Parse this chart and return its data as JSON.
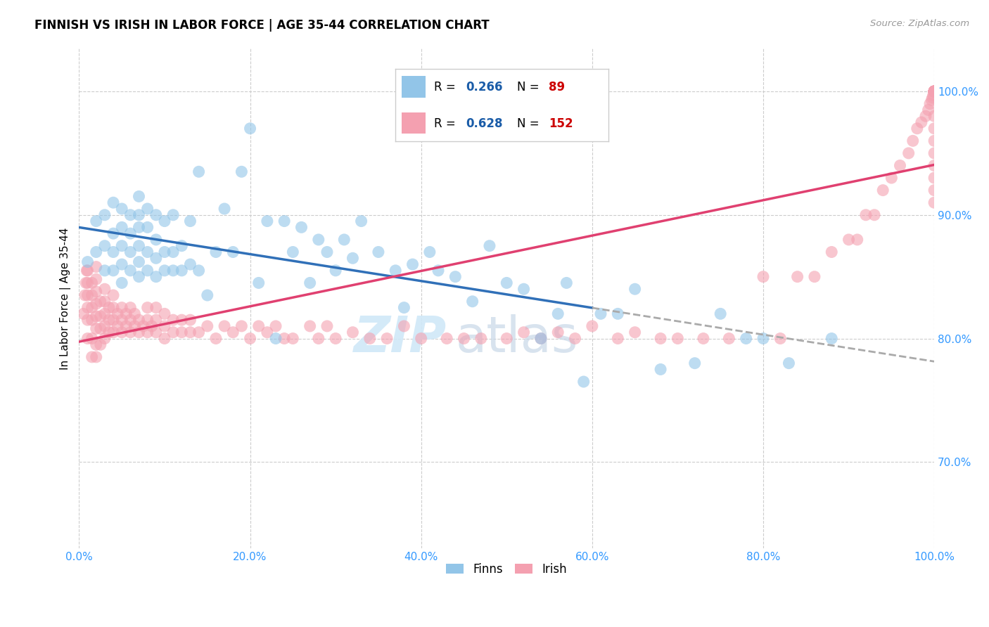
{
  "title": "FINNISH VS IRISH IN LABOR FORCE | AGE 35-44 CORRELATION CHART",
  "source": "Source: ZipAtlas.com",
  "ylabel": "In Labor Force | Age 35-44",
  "xlabel_ticks": [
    "0.0%",
    "20.0%",
    "40.0%",
    "60.0%",
    "80.0%",
    "100.0%"
  ],
  "ylabel_ticks": [
    "70.0%",
    "80.0%",
    "90.0%",
    "100.0%"
  ],
  "xlim": [
    0.0,
    1.0
  ],
  "ylim": [
    0.63,
    1.035
  ],
  "finn_color": "#92c5e8",
  "irish_color": "#f4a0b0",
  "finn_line_color": "#3070b8",
  "irish_line_color": "#e04070",
  "dashed_color": "#aaaaaa",
  "finn_R": 0.266,
  "finn_N": 89,
  "irish_R": 0.628,
  "irish_N": 152,
  "legend_R_color": "#1a5ca8",
  "legend_N_color": "#cc0000",
  "watermark_zip": "ZIP",
  "watermark_atlas": "atlas",
  "finn_x": [
    0.01,
    0.02,
    0.02,
    0.03,
    0.03,
    0.03,
    0.04,
    0.04,
    0.04,
    0.04,
    0.05,
    0.05,
    0.05,
    0.05,
    0.05,
    0.06,
    0.06,
    0.06,
    0.06,
    0.07,
    0.07,
    0.07,
    0.07,
    0.07,
    0.07,
    0.08,
    0.08,
    0.08,
    0.08,
    0.09,
    0.09,
    0.09,
    0.09,
    0.1,
    0.1,
    0.1,
    0.11,
    0.11,
    0.11,
    0.12,
    0.12,
    0.13,
    0.13,
    0.14,
    0.14,
    0.15,
    0.16,
    0.17,
    0.18,
    0.19,
    0.2,
    0.21,
    0.22,
    0.23,
    0.24,
    0.25,
    0.26,
    0.27,
    0.28,
    0.29,
    0.3,
    0.31,
    0.32,
    0.33,
    0.35,
    0.37,
    0.38,
    0.39,
    0.41,
    0.42,
    0.44,
    0.46,
    0.48,
    0.5,
    0.52,
    0.54,
    0.56,
    0.57,
    0.59,
    0.61,
    0.63,
    0.65,
    0.68,
    0.72,
    0.75,
    0.78,
    0.8,
    0.83,
    0.88
  ],
  "finn_y": [
    0.862,
    0.87,
    0.895,
    0.855,
    0.875,
    0.9,
    0.855,
    0.87,
    0.885,
    0.91,
    0.845,
    0.86,
    0.875,
    0.89,
    0.905,
    0.855,
    0.87,
    0.885,
    0.9,
    0.85,
    0.862,
    0.875,
    0.89,
    0.9,
    0.915,
    0.855,
    0.87,
    0.89,
    0.905,
    0.85,
    0.865,
    0.88,
    0.9,
    0.855,
    0.87,
    0.895,
    0.855,
    0.87,
    0.9,
    0.855,
    0.875,
    0.86,
    0.895,
    0.855,
    0.935,
    0.835,
    0.87,
    0.905,
    0.87,
    0.935,
    0.97,
    0.845,
    0.895,
    0.8,
    0.895,
    0.87,
    0.89,
    0.845,
    0.88,
    0.87,
    0.855,
    0.88,
    0.865,
    0.895,
    0.87,
    0.855,
    0.825,
    0.86,
    0.87,
    0.855,
    0.85,
    0.83,
    0.875,
    0.845,
    0.84,
    0.8,
    0.82,
    0.845,
    0.765,
    0.82,
    0.82,
    0.84,
    0.775,
    0.78,
    0.82,
    0.8,
    0.8,
    0.78,
    0.8
  ],
  "irish_x": [
    0.005,
    0.007,
    0.008,
    0.009,
    0.01,
    0.01,
    0.01,
    0.01,
    0.01,
    0.01,
    0.015,
    0.015,
    0.015,
    0.015,
    0.015,
    0.015,
    0.02,
    0.02,
    0.02,
    0.02,
    0.02,
    0.02,
    0.02,
    0.02,
    0.025,
    0.025,
    0.025,
    0.025,
    0.03,
    0.03,
    0.03,
    0.03,
    0.03,
    0.035,
    0.035,
    0.035,
    0.04,
    0.04,
    0.04,
    0.04,
    0.045,
    0.045,
    0.05,
    0.05,
    0.05,
    0.055,
    0.055,
    0.06,
    0.06,
    0.06,
    0.065,
    0.065,
    0.07,
    0.07,
    0.075,
    0.08,
    0.08,
    0.08,
    0.085,
    0.09,
    0.09,
    0.09,
    0.1,
    0.1,
    0.1,
    0.11,
    0.11,
    0.12,
    0.12,
    0.13,
    0.13,
    0.14,
    0.15,
    0.16,
    0.17,
    0.18,
    0.19,
    0.2,
    0.21,
    0.22,
    0.23,
    0.24,
    0.25,
    0.27,
    0.28,
    0.29,
    0.3,
    0.32,
    0.34,
    0.36,
    0.38,
    0.4,
    0.43,
    0.45,
    0.47,
    0.5,
    0.52,
    0.54,
    0.56,
    0.58,
    0.6,
    0.63,
    0.65,
    0.68,
    0.7,
    0.73,
    0.76,
    0.8,
    0.82,
    0.84,
    0.86,
    0.88,
    0.9,
    0.91,
    0.92,
    0.93,
    0.94,
    0.95,
    0.96,
    0.97,
    0.975,
    0.98,
    0.985,
    0.99,
    0.993,
    0.995,
    0.997,
    0.998,
    0.999,
    1.0,
    1.0,
    1.0,
    1.0,
    1.0,
    1.0,
    1.0,
    1.0,
    1.0,
    1.0,
    1.0,
    1.0,
    1.0,
    1.0,
    1.0,
    1.0,
    1.0,
    1.0,
    1.0,
    1.0,
    1.0,
    1.0,
    1.0
  ],
  "irish_y": [
    0.82,
    0.835,
    0.845,
    0.855,
    0.8,
    0.815,
    0.825,
    0.835,
    0.845,
    0.855,
    0.785,
    0.8,
    0.815,
    0.825,
    0.835,
    0.845,
    0.785,
    0.795,
    0.808,
    0.818,
    0.828,
    0.838,
    0.848,
    0.858,
    0.795,
    0.808,
    0.818,
    0.83,
    0.8,
    0.81,
    0.82,
    0.83,
    0.84,
    0.805,
    0.815,
    0.825,
    0.805,
    0.815,
    0.825,
    0.835,
    0.81,
    0.82,
    0.805,
    0.815,
    0.825,
    0.81,
    0.82,
    0.805,
    0.815,
    0.825,
    0.81,
    0.82,
    0.805,
    0.815,
    0.81,
    0.805,
    0.815,
    0.825,
    0.81,
    0.805,
    0.815,
    0.825,
    0.8,
    0.81,
    0.82,
    0.805,
    0.815,
    0.805,
    0.815,
    0.805,
    0.815,
    0.805,
    0.81,
    0.8,
    0.81,
    0.805,
    0.81,
    0.8,
    0.81,
    0.805,
    0.81,
    0.8,
    0.8,
    0.81,
    0.8,
    0.81,
    0.8,
    0.805,
    0.8,
    0.8,
    0.81,
    0.8,
    0.8,
    0.8,
    0.8,
    0.8,
    0.805,
    0.8,
    0.805,
    0.8,
    0.81,
    0.8,
    0.805,
    0.8,
    0.8,
    0.8,
    0.8,
    0.85,
    0.8,
    0.85,
    0.85,
    0.87,
    0.88,
    0.88,
    0.9,
    0.9,
    0.92,
    0.93,
    0.94,
    0.95,
    0.96,
    0.97,
    0.975,
    0.98,
    0.985,
    0.99,
    0.993,
    0.995,
    0.997,
    1.0,
    1.0,
    1.0,
    1.0,
    1.0,
    1.0,
    1.0,
    1.0,
    1.0,
    1.0,
    1.0,
    1.0,
    1.0,
    1.0,
    1.0,
    0.97,
    0.98,
    0.95,
    0.96,
    0.93,
    0.94,
    0.91,
    0.92
  ]
}
